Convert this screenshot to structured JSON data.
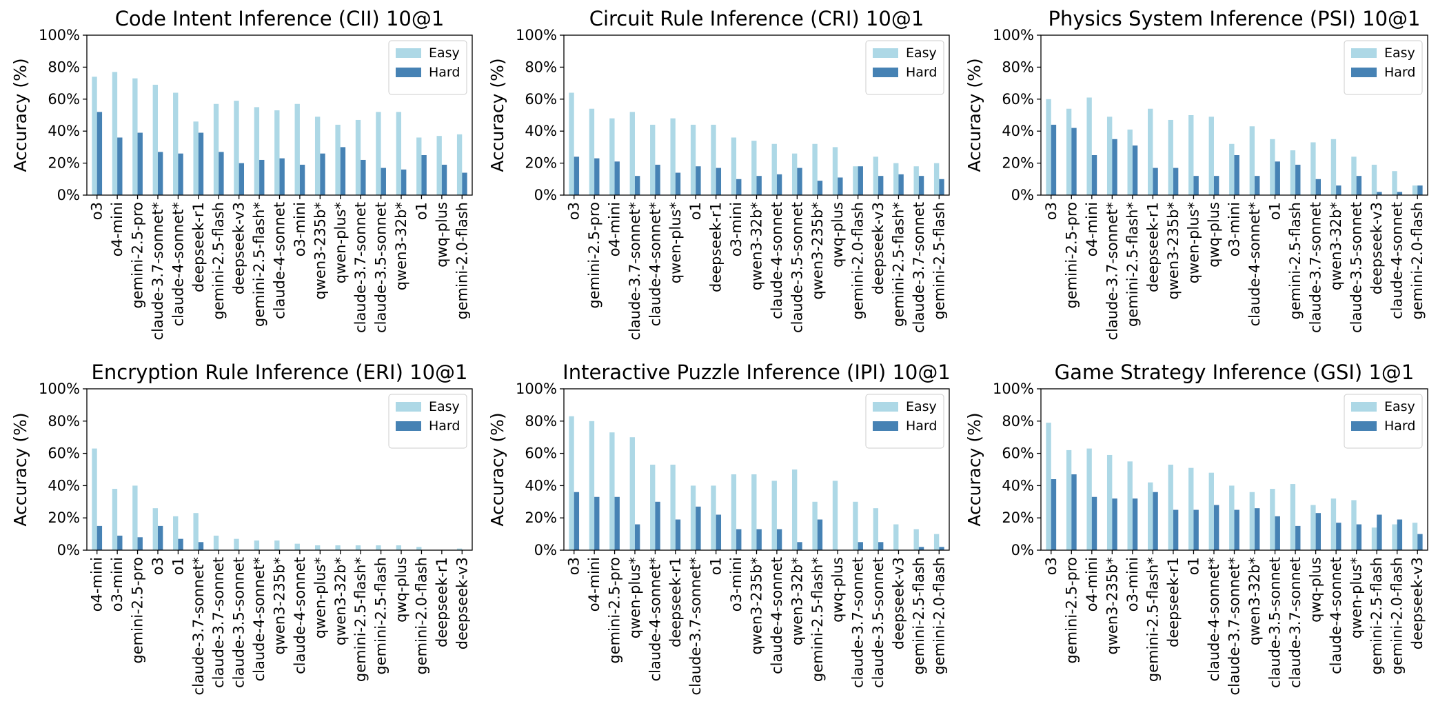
{
  "chart_data": [
    {
      "type": "bar",
      "title": "Code Intent Inference (CII) 10@1",
      "y_label": "Accuracy (%)",
      "categories": [
        "o3",
        "o4-mini",
        "gemini-2.5-pro",
        "claude-3.7-sonnet*",
        "claude-4-sonnet*",
        "deepseek-r1",
        "gemini-2.5-flash",
        "deepseek-v3",
        "gemini-2.5-flash*",
        "claude-4-sonnet",
        "o3-mini",
        "qwen3-235b*",
        "qwen-plus*",
        "claude-3.7-sonnet",
        "claude-3.5-sonnet",
        "qwen3-32b*",
        "o1",
        "qwq-plus",
        "gemini-2.0-flash"
      ],
      "series": [
        {
          "name": "Easy",
          "color": "#add8e6",
          "values": [
            74,
            77,
            73,
            69,
            64,
            46,
            57,
            59,
            55,
            53,
            57,
            49,
            44,
            47,
            52,
            52,
            36,
            37,
            38
          ]
        },
        {
          "name": "Hard",
          "color": "#4682b4",
          "values": [
            52,
            36,
            39,
            27,
            26,
            39,
            27,
            20,
            22,
            23,
            19,
            26,
            30,
            22,
            17,
            16,
            25,
            19,
            14
          ]
        }
      ],
      "ylim": [
        0,
        100
      ],
      "yticks": [
        {
          "value": 0,
          "label": "0%"
        },
        {
          "value": 20,
          "label": "20%"
        },
        {
          "value": 40,
          "label": "40%"
        },
        {
          "value": 60,
          "label": "60%"
        },
        {
          "value": 80,
          "label": "80%"
        },
        {
          "value": 100,
          "label": "100%"
        }
      ],
      "legend": "upper right"
    },
    {
      "type": "bar",
      "title": "Circuit Rule Inference (CRI) 10@1",
      "y_label": "Accuracy (%)",
      "categories": [
        "o3",
        "gemini-2.5-pro",
        "o4-mini",
        "claude-3.7-sonnet*",
        "claude-4-sonnet*",
        "qwen-plus*",
        "o1",
        "deepseek-r1",
        "o3-mini",
        "qwen3-32b*",
        "claude-4-sonnet",
        "claude-3.5-sonnet",
        "qwen3-235b*",
        "qwq-plus",
        "gemini-2.0-flash",
        "deepseek-v3",
        "gemini-2.5-flash*",
        "claude-3.7-sonnet",
        "gemini-2.5-flash"
      ],
      "series": [
        {
          "name": "Easy",
          "color": "#add8e6",
          "values": [
            64,
            54,
            48,
            52,
            44,
            48,
            44,
            44,
            36,
            34,
            32,
            26,
            32,
            30,
            18,
            24,
            20,
            18,
            20
          ]
        },
        {
          "name": "Hard",
          "color": "#4682b4",
          "values": [
            24,
            23,
            21,
            12,
            19,
            14,
            18,
            17,
            10,
            12,
            13,
            17,
            9,
            11,
            18,
            12,
            13,
            12,
            10
          ]
        }
      ],
      "ylim": [
        0,
        100
      ],
      "yticks": [
        {
          "value": 0,
          "label": "0%"
        },
        {
          "value": 20,
          "label": "20%"
        },
        {
          "value": 40,
          "label": "40%"
        },
        {
          "value": 60,
          "label": "60%"
        },
        {
          "value": 80,
          "label": "80%"
        },
        {
          "value": 100,
          "label": "100%"
        }
      ],
      "legend": "upper right"
    },
    {
      "type": "bar",
      "title": "Physics System Inference (PSI) 10@1",
      "y_label": "Accuracy (%)",
      "categories": [
        "o3",
        "gemini-2.5-pro",
        "o4-mini",
        "claude-3.7-sonnet*",
        "gemini-2.5-flash*",
        "deepseek-r1",
        "qwen3-235b*",
        "qwen-plus*",
        "qwq-plus",
        "o3-mini",
        "claude-4-sonnet*",
        "o1",
        "gemini-2.5-flash",
        "claude-3.7-sonnet",
        "qwen3-32b*",
        "claude-3.5-sonnet",
        "deepseek-v3",
        "claude-4-sonnet",
        "gemini-2.0-flash"
      ],
      "series": [
        {
          "name": "Easy",
          "color": "#add8e6",
          "values": [
            60,
            54,
            61,
            49,
            41,
            54,
            47,
            50,
            49,
            32,
            43,
            35,
            28,
            33,
            35,
            24,
            19,
            15,
            6
          ]
        },
        {
          "name": "Hard",
          "color": "#4682b4",
          "values": [
            44,
            42,
            25,
            35,
            31,
            17,
            17,
            12,
            12,
            25,
            12,
            21,
            19,
            10,
            6,
            12,
            2,
            2,
            6
          ]
        }
      ],
      "ylim": [
        0,
        100
      ],
      "yticks": [
        {
          "value": 0,
          "label": "0%"
        },
        {
          "value": 20,
          "label": "20%"
        },
        {
          "value": 40,
          "label": "40%"
        },
        {
          "value": 60,
          "label": "60%"
        },
        {
          "value": 80,
          "label": "80%"
        },
        {
          "value": 100,
          "label": "100%"
        }
      ],
      "legend": "upper right"
    },
    {
      "type": "bar",
      "title": "Encryption Rule Inference (ERI) 10@1",
      "y_label": "Accuracy (%)",
      "categories": [
        "o4-mini",
        "o3-mini",
        "gemini-2.5-pro",
        "o3",
        "o1",
        "claude-3.7-sonnet*",
        "claude-3.7-sonnet",
        "claude-3.5-sonnet",
        "claude-4-sonnet*",
        "qwen3-235b*",
        "claude-4-sonnet",
        "qwen-plus*",
        "qwen3-32b*",
        "gemini-2.5-flash*",
        "gemini-2.5-flash",
        "qwq-plus",
        "gemini-2.0-flash",
        "deepseek-r1",
        "deepseek-v3"
      ],
      "series": [
        {
          "name": "Easy",
          "color": "#add8e6",
          "values": [
            63,
            38,
            40,
            26,
            21,
            23,
            9,
            7,
            6,
            6,
            4,
            3,
            3,
            3,
            3,
            3,
            2,
            0,
            1
          ]
        },
        {
          "name": "Hard",
          "color": "#4682b4",
          "values": [
            15,
            9,
            8,
            15,
            7,
            5,
            0,
            0,
            0,
            0,
            0,
            0,
            0,
            0,
            0,
            0,
            0,
            0,
            0
          ]
        }
      ],
      "ylim": [
        0,
        100
      ],
      "yticks": [
        {
          "value": 0,
          "label": "0%"
        },
        {
          "value": 20,
          "label": "20%"
        },
        {
          "value": 40,
          "label": "40%"
        },
        {
          "value": 60,
          "label": "60%"
        },
        {
          "value": 80,
          "label": "80%"
        },
        {
          "value": 100,
          "label": "100%"
        }
      ],
      "legend": "upper right"
    },
    {
      "type": "bar",
      "title": "Interactive Puzzle Inference (IPI) 10@1",
      "y_label": "Accuracy (%)",
      "categories": [
        "o3",
        "o4-mini",
        "gemini-2.5-pro",
        "qwen-plus*",
        "claude-4-sonnet*",
        "deepseek-r1",
        "claude-3.7-sonnet*",
        "o1",
        "o3-mini",
        "qwen3-235b*",
        "claude-4-sonnet",
        "qwen3-32b*",
        "gemini-2.5-flash*",
        "qwq-plus",
        "claude-3.7-sonnet",
        "claude-3.5-sonnet",
        "deepseek-v3",
        "gemini-2.5-flash",
        "gemini-2.0-flash"
      ],
      "series": [
        {
          "name": "Easy",
          "color": "#add8e6",
          "values": [
            83,
            80,
            73,
            70,
            53,
            53,
            40,
            40,
            47,
            47,
            43,
            50,
            30,
            43,
            30,
            26,
            16,
            13,
            10
          ]
        },
        {
          "name": "Hard",
          "color": "#4682b4",
          "values": [
            36,
            33,
            33,
            16,
            30,
            19,
            27,
            22,
            13,
            13,
            13,
            5,
            19,
            0,
            5,
            5,
            0,
            2,
            2
          ]
        }
      ],
      "ylim": [
        0,
        100
      ],
      "yticks": [
        {
          "value": 0,
          "label": "0%"
        },
        {
          "value": 20,
          "label": "20%"
        },
        {
          "value": 40,
          "label": "40%"
        },
        {
          "value": 60,
          "label": "60%"
        },
        {
          "value": 80,
          "label": "80%"
        },
        {
          "value": 100,
          "label": "100%"
        }
      ],
      "legend": "upper right"
    },
    {
      "type": "bar",
      "title": "Game Strategy Inference (GSI) 1@1",
      "y_label": "Accuracy (%)",
      "categories": [
        "o3",
        "gemini-2.5-pro",
        "o4-mini",
        "qwen3-235b*",
        "o3-mini",
        "gemini-2.5-flash*",
        "deepseek-r1",
        "o1",
        "claude-4-sonnet*",
        "claude-3.7-sonnet*",
        "qwen3-32b*",
        "claude-3.5-sonnet",
        "claude-3.7-sonnet",
        "qwq-plus",
        "claude-4-sonnet",
        "qwen-plus*",
        "gemini-2.5-flash",
        "gemini-2.0-flash",
        "deepseek-v3"
      ],
      "series": [
        {
          "name": "Easy",
          "color": "#add8e6",
          "values": [
            79,
            62,
            63,
            59,
            55,
            42,
            53,
            51,
            48,
            40,
            36,
            38,
            41,
            28,
            32,
            31,
            14,
            16,
            17
          ]
        },
        {
          "name": "Hard",
          "color": "#4682b4",
          "values": [
            44,
            47,
            33,
            32,
            32,
            36,
            25,
            25,
            28,
            25,
            26,
            21,
            15,
            23,
            17,
            16,
            22,
            19,
            10
          ]
        }
      ],
      "ylim": [
        0,
        100
      ],
      "yticks": [
        {
          "value": 0,
          "label": "0%"
        },
        {
          "value": 20,
          "label": "20%"
        },
        {
          "value": 40,
          "label": "40%"
        },
        {
          "value": 60,
          "label": "60%"
        },
        {
          "value": 80,
          "label": "80%"
        },
        {
          "value": 100,
          "label": "100%"
        }
      ],
      "legend": "upper right"
    }
  ]
}
